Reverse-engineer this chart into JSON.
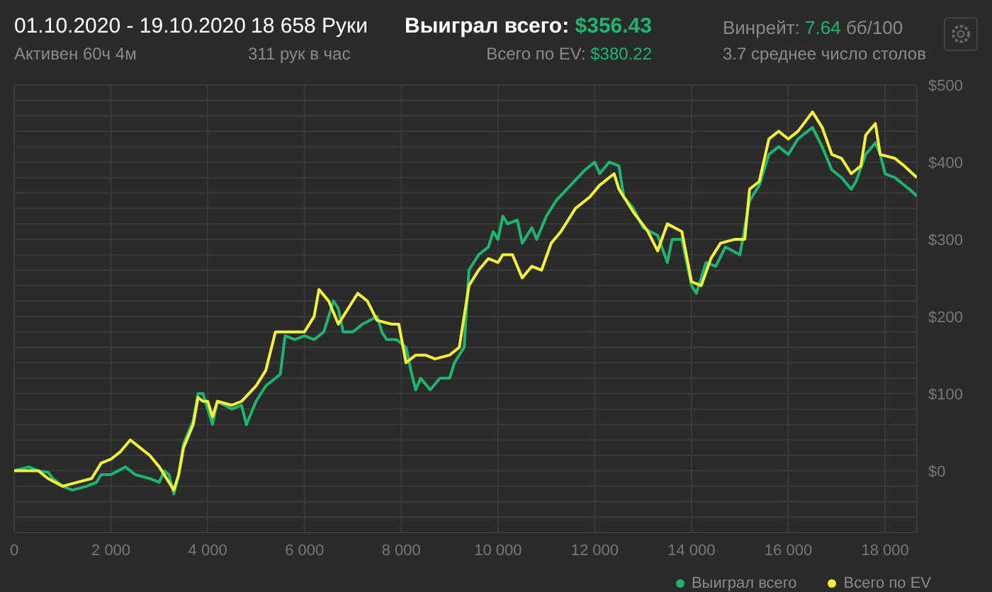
{
  "chart_data": {
    "type": "line",
    "title": "01.10.2020 - 19.10.2020",
    "subtitle": "Активен 60ч 4м",
    "annotations": [
      "18 658 Руки",
      "311 рук в час",
      "Выиграл всего: $356.43",
      "Всего по EV: $380.22",
      "Винрейт: 7.64 бб/100",
      "3.7 среднее число столов"
    ],
    "xlim": [
      0,
      18658
    ],
    "xticks": [
      0,
      {
        "value": 2000,
        "label": "2 000"
      },
      {
        "value": 4000,
        "label": "4 000"
      },
      {
        "value": 6000,
        "label": "6 000"
      },
      {
        "value": 8000,
        "label": "8 000"
      },
      {
        "value": 10000,
        "label": "10 000"
      },
      {
        "value": 12000,
        "label": "12 000"
      },
      {
        "value": 14000,
        "label": "14 000"
      },
      {
        "value": 16000,
        "label": "16 000"
      },
      {
        "value": 18000,
        "label": "18 000"
      }
    ],
    "ylim": [
      -80,
      500
    ],
    "yticks": [
      {
        "value": -60,
        "label": null
      },
      {
        "value": -40,
        "label": null
      },
      {
        "value": -20,
        "label": null
      },
      {
        "value": 0,
        "label": "$0"
      },
      {
        "value": 20,
        "label": null
      },
      {
        "value": 40,
        "label": null
      },
      {
        "value": 60,
        "label": null
      },
      {
        "value": 80,
        "label": null
      },
      {
        "value": 100,
        "label": "$100"
      },
      {
        "value": 120,
        "label": null
      },
      {
        "value": 140,
        "label": null
      },
      {
        "value": 160,
        "label": null
      },
      {
        "value": 180,
        "label": null
      },
      {
        "value": 200,
        "label": "$200"
      },
      {
        "value": 220,
        "label": null
      },
      {
        "value": 240,
        "label": null
      },
      {
        "value": 260,
        "label": null
      },
      {
        "value": 280,
        "label": null
      },
      {
        "value": 300,
        "label": "$300"
      },
      {
        "value": 320,
        "label": null
      },
      {
        "value": 340,
        "label": null
      },
      {
        "value": 360,
        "label": null
      },
      {
        "value": 380,
        "label": null
      },
      {
        "value": 400,
        "label": "$400"
      },
      {
        "value": 420,
        "label": null
      },
      {
        "value": 440,
        "label": null
      },
      {
        "value": 460,
        "label": null
      },
      {
        "value": 480,
        "label": null
      },
      {
        "value": 500,
        "label": "$500"
      }
    ],
    "grid": true,
    "legend": "bottom right",
    "marker": "none",
    "line_style": "solid",
    "series": [
      {
        "name": "Выиграл всего",
        "color": "#1db56f",
        "x": [
          0,
          300,
          500,
          700,
          800,
          1000,
          1200,
          1500,
          1700,
          1800,
          2000,
          2300,
          2500,
          2800,
          3000,
          3100,
          3200,
          3300,
          3400,
          3500,
          3700,
          3800,
          3900,
          4000,
          4100,
          4200,
          4500,
          4700,
          4800,
          5000,
          5200,
          5500,
          5600,
          5800,
          6000,
          6200,
          6400,
          6600,
          6700,
          6800,
          7000,
          7200,
          7500,
          7600,
          7700,
          7900,
          8100,
          8200,
          8300,
          8400,
          8600,
          8800,
          9000,
          9100,
          9300,
          9400,
          9600,
          9800,
          9900,
          10000,
          10100,
          10200,
          10400,
          10500,
          10700,
          10800,
          11000,
          11200,
          11500,
          11800,
          12000,
          12100,
          12300,
          12500,
          12600,
          12800,
          13000,
          13300,
          13500,
          13600,
          13800,
          14000,
          14100,
          14300,
          14500,
          14700,
          15000,
          15200,
          15400,
          15600,
          15800,
          16000,
          16200,
          16500,
          16700,
          16900,
          17100,
          17300,
          17400,
          17600,
          17800,
          17900,
          18000,
          18200,
          18500,
          18658
        ],
        "values": [
          0,
          5,
          0,
          -2,
          -10,
          -20,
          -25,
          -20,
          -15,
          -5,
          -5,
          5,
          -5,
          -10,
          -15,
          0,
          -5,
          -30,
          -5,
          35,
          65,
          100,
          100,
          80,
          60,
          90,
          80,
          85,
          60,
          90,
          110,
          125,
          175,
          170,
          175,
          170,
          180,
          220,
          210,
          180,
          180,
          190,
          200,
          180,
          170,
          170,
          160,
          130,
          105,
          120,
          105,
          120,
          120,
          140,
          160,
          260,
          280,
          290,
          310,
          300,
          330,
          320,
          325,
          295,
          315,
          300,
          330,
          350,
          370,
          390,
          400,
          385,
          400,
          395,
          355,
          340,
          315,
          305,
          270,
          300,
          300,
          240,
          230,
          270,
          265,
          290,
          280,
          350,
          370,
          410,
          420,
          410,
          430,
          445,
          420,
          390,
          380,
          365,
          375,
          410,
          425,
          410,
          385,
          380,
          365,
          356
        ]
      },
      {
        "name": "Всего по EV",
        "color": "#f5f03a",
        "x": [
          0,
          500,
          700,
          1000,
          1300,
          1600,
          1800,
          2000,
          2200,
          2400,
          2600,
          2800,
          3000,
          3200,
          3300,
          3400,
          3500,
          3700,
          3800,
          3900,
          4000,
          4100,
          4200,
          4500,
          4700,
          5000,
          5200,
          5400,
          5700,
          6000,
          6200,
          6300,
          6500,
          6700,
          6900,
          7100,
          7300,
          7500,
          7800,
          7950,
          8100,
          8300,
          8500,
          8700,
          9000,
          9200,
          9400,
          9600,
          9800,
          10000,
          10100,
          10300,
          10500,
          10700,
          10900,
          11100,
          11300,
          11600,
          11900,
          12100,
          12400,
          12500,
          12800,
          13100,
          13300,
          13500,
          13800,
          14000,
          14200,
          14400,
          14600,
          14900,
          15100,
          15200,
          15400,
          15600,
          15800,
          16000,
          16200,
          16500,
          16700,
          16900,
          17100,
          17300,
          17500,
          17600,
          17800,
          17900,
          18200,
          18400,
          18658
        ],
        "values": [
          0,
          0,
          -10,
          -20,
          -15,
          -10,
          10,
          15,
          25,
          40,
          30,
          20,
          5,
          -15,
          -25,
          -5,
          30,
          60,
          95,
          90,
          90,
          70,
          90,
          85,
          90,
          110,
          130,
          180,
          180,
          180,
          200,
          235,
          220,
          190,
          210,
          230,
          220,
          195,
          190,
          190,
          140,
          150,
          150,
          145,
          150,
          160,
          240,
          260,
          275,
          270,
          280,
          280,
          250,
          265,
          260,
          295,
          310,
          340,
          355,
          370,
          385,
          365,
          335,
          310,
          285,
          320,
          310,
          245,
          240,
          275,
          295,
          300,
          300,
          365,
          375,
          430,
          440,
          430,
          440,
          465,
          445,
          410,
          405,
          385,
          395,
          435,
          450,
          410,
          405,
          395,
          380
        ]
      }
    ]
  }
}
